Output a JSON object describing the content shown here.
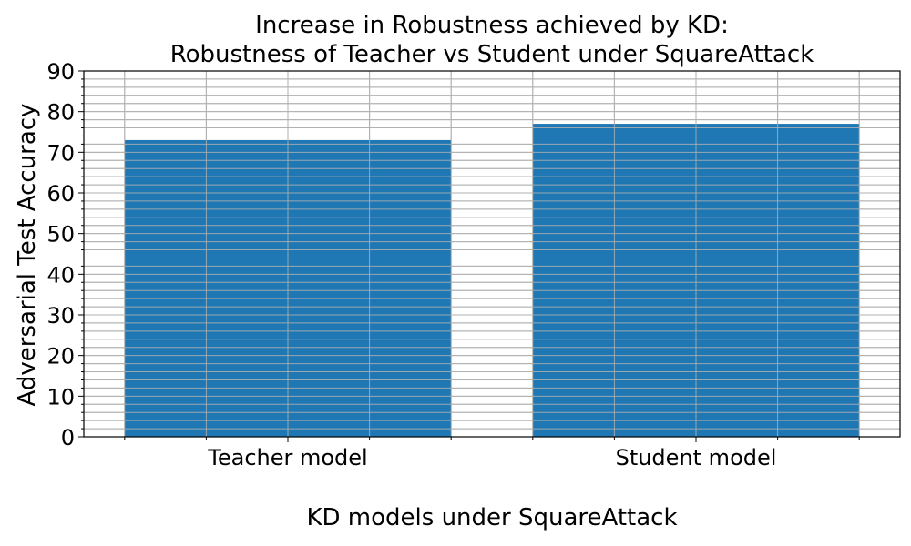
{
  "chart_data": {
    "type": "bar",
    "title_lines": [
      "Increase in Robustness achieved by KD:",
      "Robustness of Teacher vs Student under SquareAttack"
    ],
    "categories": [
      "Teacher model",
      "Student model"
    ],
    "values": [
      73,
      77
    ],
    "xlabel": "KD models under SquareAttack",
    "ylabel": "Adversarial Test Accuracy",
    "ylim": [
      0,
      90
    ],
    "yticks": [
      0,
      10,
      20,
      30,
      40,
      50,
      60,
      70,
      80,
      90
    ],
    "bar_color": "#1f77b4",
    "grid": true,
    "minor_grid": true
  }
}
